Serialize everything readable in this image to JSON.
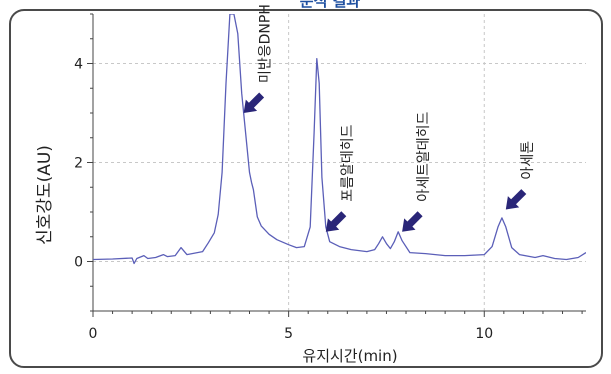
{
  "colors": {
    "trace": "#5b5fb8",
    "arrow": "#2a2678",
    "panel_border": "#4a4a4a",
    "plot_bg": "#ffffff",
    "grid": "#c8c8c8",
    "title": "#1e4fa0"
  },
  "chart_data": {
    "type": "line",
    "title": "분석 결과",
    "xlabel": "유지시간(min)",
    "ylabel": "신호강도(AU)",
    "xlim": [
      0,
      12.6
    ],
    "ylim": [
      -1.0,
      5.0
    ],
    "x_ticks": [
      0,
      5,
      10
    ],
    "x_tick_labels": [
      "0",
      "5",
      "10"
    ],
    "y_ticks": [
      0,
      2,
      4
    ],
    "y_tick_labels": [
      "0",
      "2",
      "4"
    ],
    "grid": true,
    "points": [
      [
        0.0,
        0.04
      ],
      [
        0.5,
        0.05
      ],
      [
        1.0,
        0.07
      ],
      [
        1.05,
        -0.04
      ],
      [
        1.12,
        0.06
      ],
      [
        1.3,
        0.12
      ],
      [
        1.4,
        0.06
      ],
      [
        1.6,
        0.08
      ],
      [
        1.8,
        0.14
      ],
      [
        1.9,
        0.1
      ],
      [
        2.1,
        0.12
      ],
      [
        2.25,
        0.28
      ],
      [
        2.4,
        0.14
      ],
      [
        2.8,
        0.2
      ],
      [
        2.95,
        0.38
      ],
      [
        3.1,
        0.58
      ],
      [
        3.2,
        0.95
      ],
      [
        3.3,
        1.8
      ],
      [
        3.4,
        3.6
      ],
      [
        3.5,
        5.0
      ],
      [
        3.6,
        5.0
      ],
      [
        3.7,
        4.6
      ],
      [
        3.8,
        3.4
      ],
      [
        3.9,
        2.6
      ],
      [
        4.0,
        1.8
      ],
      [
        4.05,
        1.6
      ],
      [
        4.1,
        1.45
      ],
      [
        4.2,
        0.9
      ],
      [
        4.3,
        0.72
      ],
      [
        4.5,
        0.55
      ],
      [
        4.7,
        0.44
      ],
      [
        5.0,
        0.34
      ],
      [
        5.2,
        0.28
      ],
      [
        5.4,
        0.3
      ],
      [
        5.55,
        0.7
      ],
      [
        5.65,
        2.6
      ],
      [
        5.72,
        4.1
      ],
      [
        5.78,
        3.6
      ],
      [
        5.85,
        1.7
      ],
      [
        5.95,
        0.7
      ],
      [
        6.05,
        0.4
      ],
      [
        6.3,
        0.3
      ],
      [
        6.6,
        0.24
      ],
      [
        7.0,
        0.2
      ],
      [
        7.2,
        0.24
      ],
      [
        7.3,
        0.36
      ],
      [
        7.4,
        0.5
      ],
      [
        7.5,
        0.36
      ],
      [
        7.6,
        0.26
      ],
      [
        7.7,
        0.4
      ],
      [
        7.8,
        0.6
      ],
      [
        7.9,
        0.42
      ],
      [
        8.1,
        0.18
      ],
      [
        8.5,
        0.16
      ],
      [
        9.0,
        0.12
      ],
      [
        9.5,
        0.12
      ],
      [
        10.0,
        0.14
      ],
      [
        10.2,
        0.3
      ],
      [
        10.35,
        0.7
      ],
      [
        10.45,
        0.88
      ],
      [
        10.55,
        0.7
      ],
      [
        10.7,
        0.28
      ],
      [
        10.9,
        0.14
      ],
      [
        11.3,
        0.08
      ],
      [
        11.5,
        0.12
      ],
      [
        11.8,
        0.06
      ],
      [
        12.1,
        0.04
      ],
      [
        12.4,
        0.08
      ],
      [
        12.6,
        0.18
      ]
    ],
    "annotations": [
      {
        "label": "미반응DNPH",
        "x": 3.85,
        "y": 3.0
      },
      {
        "label": "포름알데히드",
        "x": 5.95,
        "y": 0.6
      },
      {
        "label": "아세트알데히드",
        "x": 7.9,
        "y": 0.6
      },
      {
        "label": "아세톤",
        "x": 10.55,
        "y": 1.05
      }
    ]
  }
}
